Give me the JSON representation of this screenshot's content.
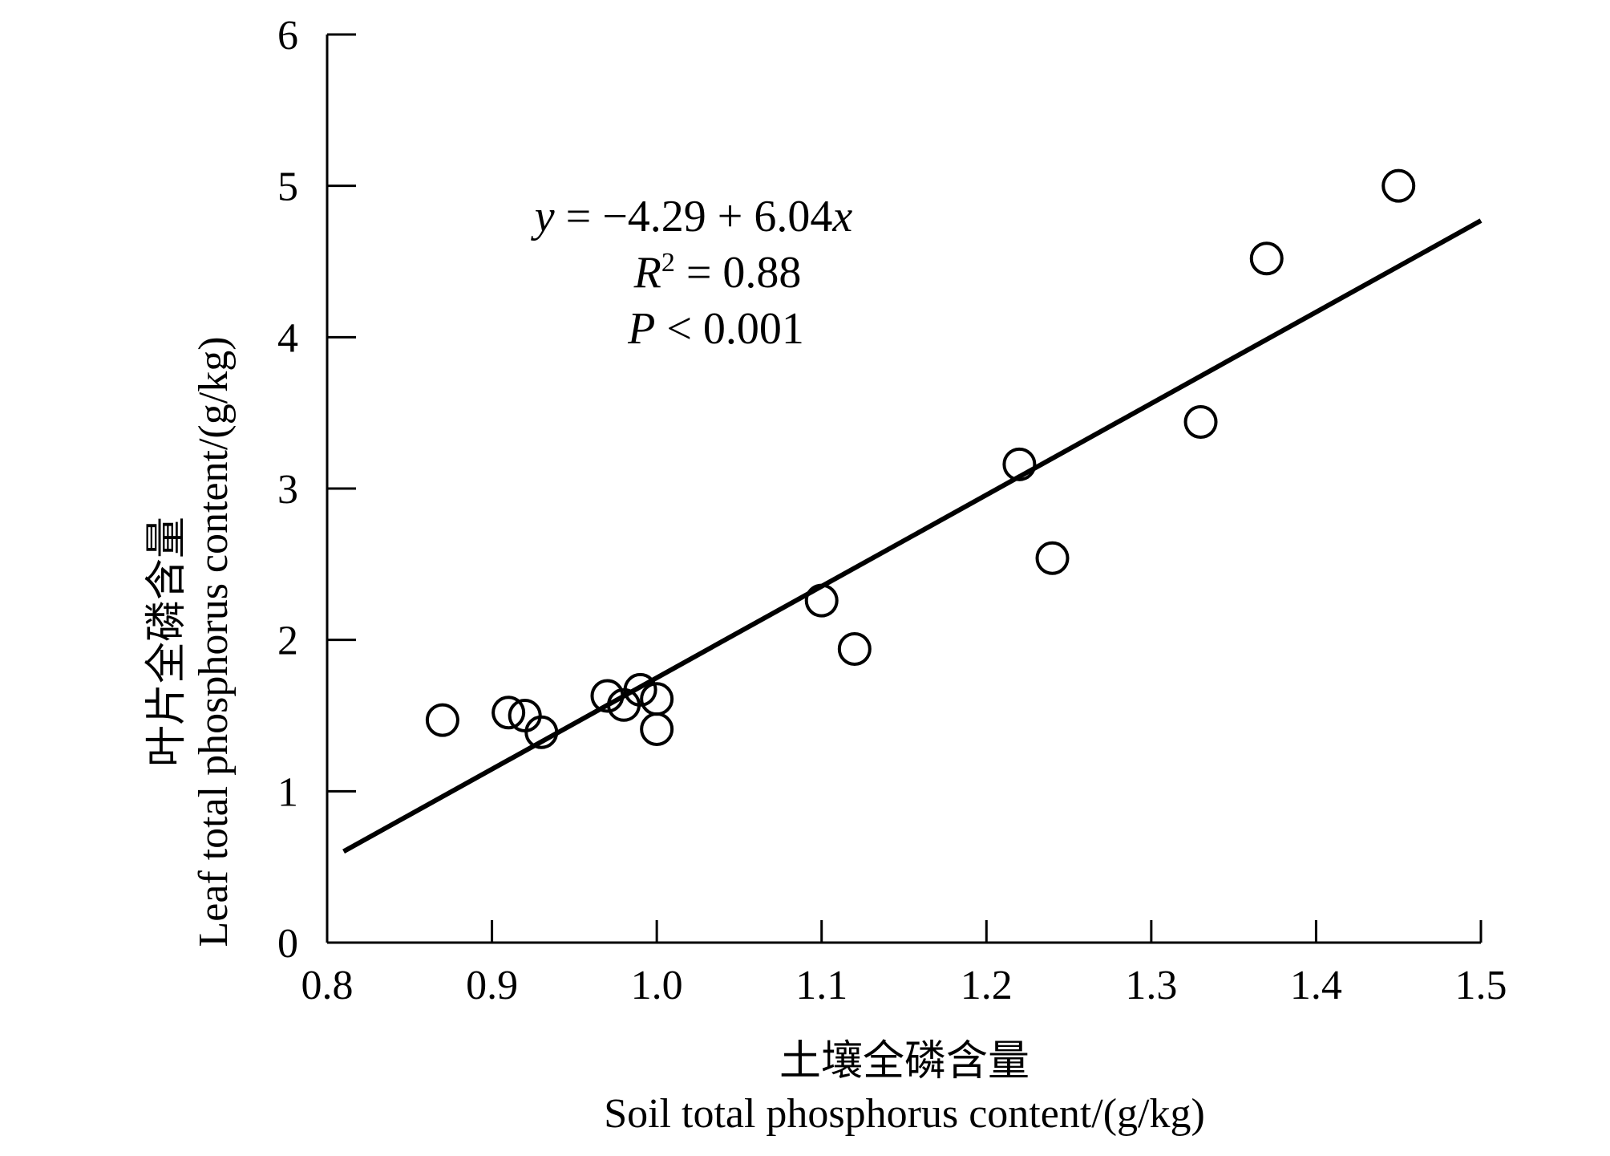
{
  "chart_data": {
    "type": "scatter",
    "title": "",
    "xlabel": [
      "土壤全磷含量",
      "Soil total phosphorus content/(g/kg)"
    ],
    "ylabel": [
      "叶片全磷含量",
      "Leaf total phosphorus content/(g/kg)"
    ],
    "xlim": [
      0.8,
      1.5
    ],
    "ylim": [
      0,
      6
    ],
    "xticks": [
      "0.8",
      "0.9",
      "1.0",
      "1.1",
      "1.2",
      "1.3",
      "1.4",
      "1.5"
    ],
    "yticks": [
      "0",
      "1",
      "2",
      "3",
      "4",
      "5",
      "6"
    ],
    "grid": false,
    "points": [
      {
        "x": 0.87,
        "y": 1.47
      },
      {
        "x": 0.91,
        "y": 1.52
      },
      {
        "x": 0.92,
        "y": 1.5
      },
      {
        "x": 0.93,
        "y": 1.39
      },
      {
        "x": 0.97,
        "y": 1.63
      },
      {
        "x": 0.98,
        "y": 1.57
      },
      {
        "x": 0.99,
        "y": 1.67
      },
      {
        "x": 1.0,
        "y": 1.41
      },
      {
        "x": 1.0,
        "y": 1.61
      },
      {
        "x": 1.1,
        "y": 2.26
      },
      {
        "x": 1.12,
        "y": 1.94
      },
      {
        "x": 1.22,
        "y": 3.16
      },
      {
        "x": 1.24,
        "y": 2.54
      },
      {
        "x": 1.33,
        "y": 3.44
      },
      {
        "x": 1.37,
        "y": 4.52
      },
      {
        "x": 1.45,
        "y": 5.0
      }
    ],
    "fit_line": {
      "intercept": -4.29,
      "slope": 6.04,
      "x_range": [
        0.81,
        1.5
      ]
    },
    "annotation": {
      "equation": "y = −4.29 + 6.04x",
      "r2": "R2 = 0.88",
      "p": "P < 0.001"
    }
  }
}
